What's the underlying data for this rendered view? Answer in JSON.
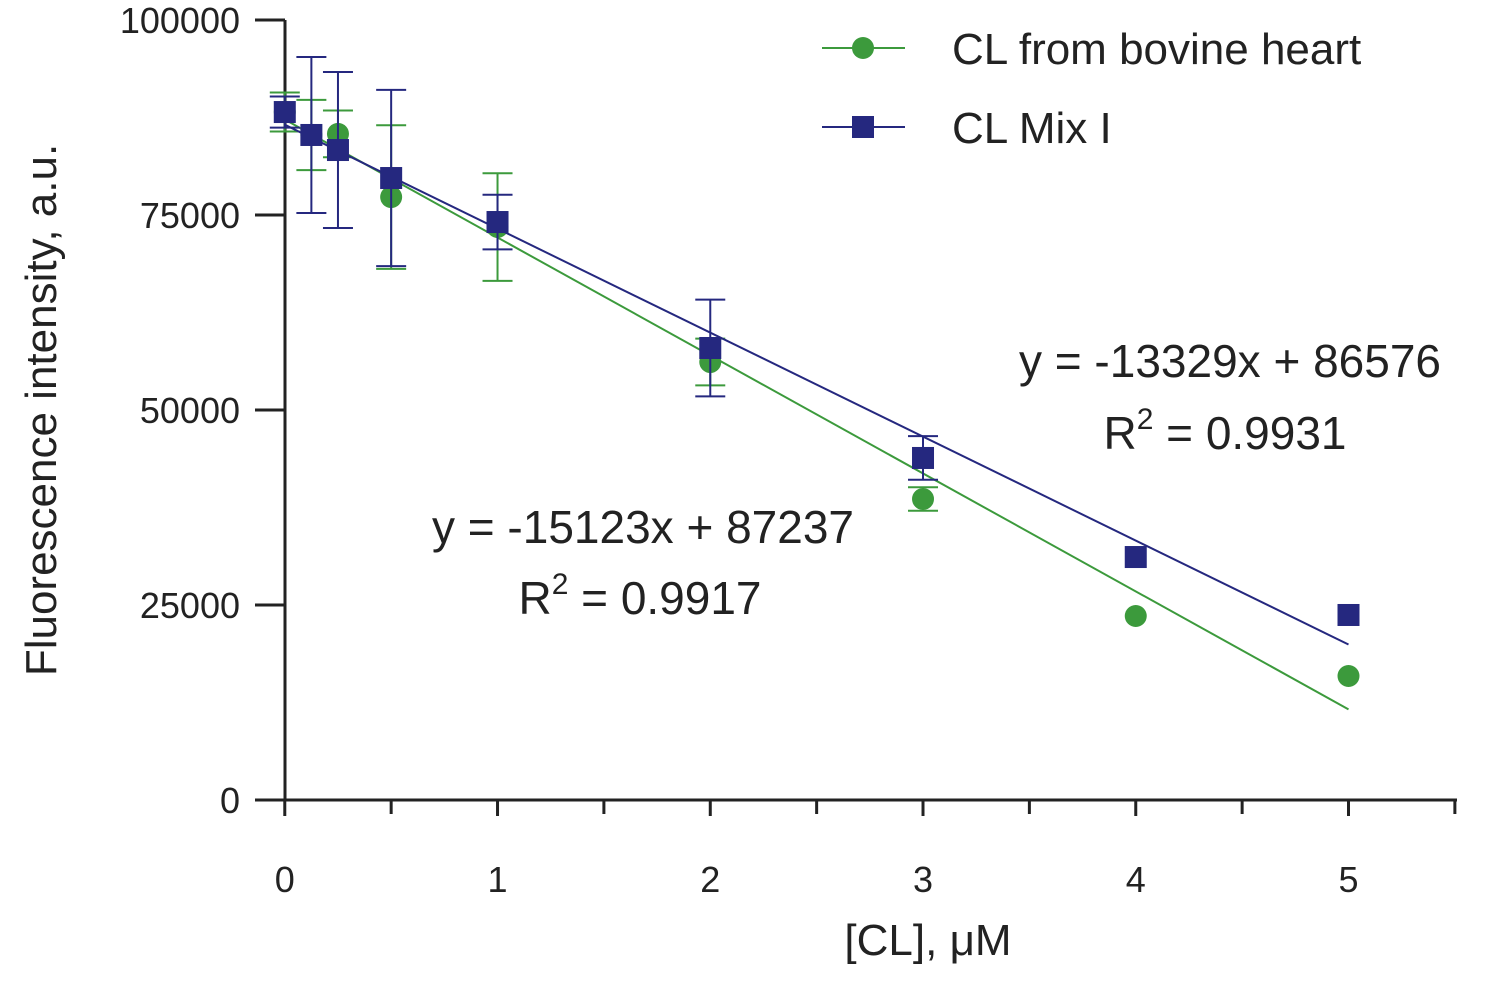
{
  "chart_data": {
    "type": "scatter",
    "x_label": "[CL], μM",
    "y_label": "Fluorescence intensity, a.u.",
    "xlim": [
      -0.14,
      5.51
    ],
    "xticks": [
      0,
      1,
      2,
      3,
      4,
      5
    ],
    "x_minor_ticks": [
      0.5,
      1.5,
      2.5,
      3.5,
      4.5,
      5.5
    ],
    "ylim": [
      0,
      100000
    ],
    "yticks": [
      0,
      25000,
      50000,
      75000,
      100000
    ],
    "legend": "top-right",
    "series": [
      {
        "name": "CL from bovine heart",
        "color": "#3c9a3c",
        "marker": "circle",
        "x": [
          0,
          0.125,
          0.25,
          0.5,
          1,
          2,
          3,
          4,
          5
        ],
        "values": [
          88200,
          85260,
          85400,
          77300,
          73460,
          56150,
          38590,
          23590,
          15900
        ],
        "errors": [
          2500,
          4500,
          3000,
          9200,
          6900,
          3000,
          1500,
          null,
          null
        ],
        "fit": {
          "slope": -15123,
          "intercept": 87237
        },
        "annotation": {
          "equation": "y = -15123x + 87237",
          "r2_base": "R",
          "r2_sup": "2",
          "r2_rest": " = 0.9917"
        }
      },
      {
        "name": "CL Mix I",
        "color": "#25287f",
        "marker": "square",
        "x": [
          0,
          0.125,
          0.25,
          0.5,
          1,
          2,
          3,
          4,
          5
        ],
        "values": [
          88200,
          85260,
          83330,
          79740,
          74100,
          57950,
          43850,
          31150,
          23720
        ],
        "errors": [
          2000,
          10000,
          10000,
          11300,
          3500,
          6200,
          2800,
          null,
          null
        ],
        "fit": {
          "slope": -13329,
          "intercept": 86576
        },
        "annotation": {
          "equation": "y = -13329x + 86576",
          "r2_base": "R",
          "r2_sup": "2",
          "r2_rest": " = 0.9931"
        }
      }
    ]
  }
}
